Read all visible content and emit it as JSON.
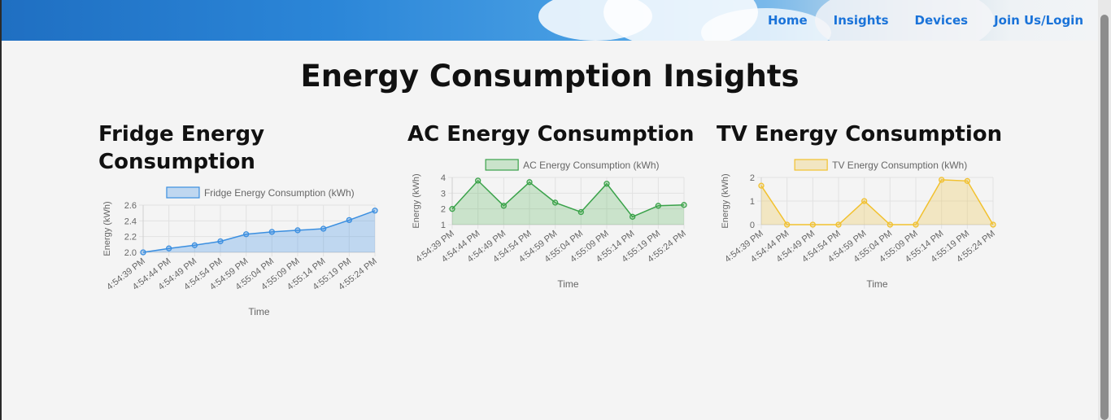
{
  "nav": {
    "home": "Home",
    "insights": "Insights",
    "devices": "Devices",
    "join": "Join Us/Login"
  },
  "page_title": "Energy Consumption Insights",
  "panels": {
    "fridge": {
      "heading_line1": "Fridge Energy",
      "heading_line2": "Consumption"
    },
    "ac": {
      "heading": "AC Energy Consumption"
    },
    "tv": {
      "heading": "TV Energy Consumption"
    }
  },
  "chart_data": [
    {
      "type": "area",
      "legend": "Fridge Energy Consumption (kWh)",
      "xlabel": "Time",
      "ylabel": "Energy (kWh)",
      "x": [
        "4:54:39 PM",
        "4:54:44 PM",
        "4:54:49 PM",
        "4:54:54 PM",
        "4:54:59 PM",
        "4:55:04 PM",
        "4:55:09 PM",
        "4:55:14 PM",
        "4:55:19 PM",
        "4:55:24 PM"
      ],
      "values": [
        2.0,
        2.05,
        2.09,
        2.14,
        2.23,
        2.26,
        2.28,
        2.3,
        2.41,
        2.53
      ],
      "ylim": [
        2.0,
        2.6
      ],
      "yticks": [
        "2.0",
        "2.2",
        "2.4",
        "2.6"
      ],
      "color": "#3b8fe0",
      "fill": "rgba(54,140,230,0.28)",
      "grid": true,
      "legend_position": "top"
    },
    {
      "type": "area",
      "legend": "AC Energy Consumption (kWh)",
      "xlabel": "Time",
      "ylabel": "Energy (kWh)",
      "x": [
        "4:54:39 PM",
        "4:54:44 PM",
        "4:54:49 PM",
        "4:54:54 PM",
        "4:54:59 PM",
        "4:55:04 PM",
        "4:55:09 PM",
        "4:55:14 PM",
        "4:55:19 PM",
        "4:55:24 PM"
      ],
      "values": [
        2.0,
        3.8,
        2.2,
        3.7,
        2.4,
        1.8,
        3.6,
        1.5,
        2.2,
        2.25
      ],
      "ylim": [
        1,
        4
      ],
      "yticks": [
        "1",
        "2",
        "3",
        "4"
      ],
      "color": "#3aa24a",
      "fill": "rgba(76,175,80,0.25)",
      "grid": true,
      "legend_position": "top"
    },
    {
      "type": "area",
      "legend": "TV Energy Consumption (kWh)",
      "xlabel": "Time",
      "ylabel": "Energy (kWh)",
      "x": [
        "4:54:39 PM",
        "4:54:44 PM",
        "4:54:49 PM",
        "4:54:54 PM",
        "4:54:59 PM",
        "4:55:04 PM",
        "4:55:09 PM",
        "4:55:14 PM",
        "4:55:19 PM",
        "4:55:24 PM"
      ],
      "values": [
        1.65,
        0,
        0,
        0,
        1.0,
        0,
        0,
        1.9,
        1.85,
        0
      ],
      "ylim": [
        0,
        2
      ],
      "yticks": [
        "0",
        "1",
        "2"
      ],
      "color": "#f2c12e",
      "fill": "rgba(240,200,80,0.30)",
      "grid": true,
      "legend_position": "top"
    }
  ]
}
